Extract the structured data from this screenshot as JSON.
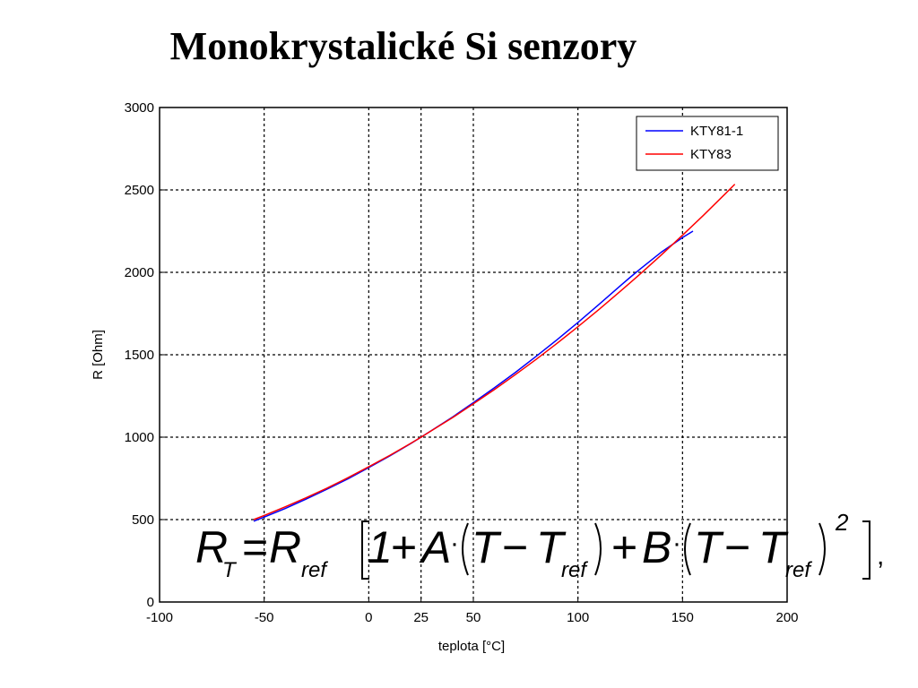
{
  "slide": {
    "title": "Monokrystalické Si senzory"
  },
  "chart_data": {
    "type": "line",
    "title": "",
    "xlabel": "teplota [°C]",
    "ylabel": "R [Ohm]",
    "xlim": [
      -100,
      200
    ],
    "ylim": [
      0,
      3000
    ],
    "x_ticks": [
      -100,
      -50,
      0,
      25,
      50,
      100,
      150,
      200
    ],
    "y_ticks": [
      0,
      500,
      1000,
      1500,
      2000,
      2500,
      3000
    ],
    "grid": true,
    "legend_position": "top-right",
    "series": [
      {
        "name": "KTY81-1",
        "color": "#0000ff",
        "x": [
          -55,
          -50,
          -40,
          -30,
          -20,
          -10,
          0,
          10,
          20,
          25,
          30,
          40,
          50,
          60,
          70,
          80,
          90,
          100,
          110,
          120,
          125,
          130,
          140,
          150,
          155
        ],
        "y": [
          490,
          515,
          567,
          624,
          684,
          747,
          815,
          886,
          961,
          1000,
          1040,
          1122,
          1209,
          1299,
          1392,
          1490,
          1591,
          1696,
          1805,
          1915,
          1970,
          2023,
          2124,
          2211,
          2250
        ]
      },
      {
        "name": "KTY83",
        "color": "#ff0000",
        "x": [
          -55,
          -50,
          -40,
          -30,
          -20,
          -10,
          0,
          10,
          20,
          25,
          30,
          40,
          50,
          60,
          70,
          80,
          90,
          100,
          110,
          120,
          125,
          130,
          140,
          150,
          160,
          170,
          175
        ],
        "y": [
          500,
          525,
          577,
          632,
          691,
          754,
          820,
          889,
          962,
          1000,
          1039,
          1118,
          1202,
          1288,
          1379,
          1472,
          1569,
          1670,
          1774,
          1882,
          1937,
          1993,
          2107,
          2225,
          2346,
          2471,
          2535
        ]
      }
    ]
  },
  "formula": {
    "R": "R",
    "T_sub": "T",
    "ref_sub": "ref",
    "equals": "=",
    "one": "1",
    "plus": "+",
    "A": "A",
    "B": "B",
    "dot": "·",
    "T": "T",
    "minus": "−",
    "exp": "2",
    "comma": ","
  }
}
